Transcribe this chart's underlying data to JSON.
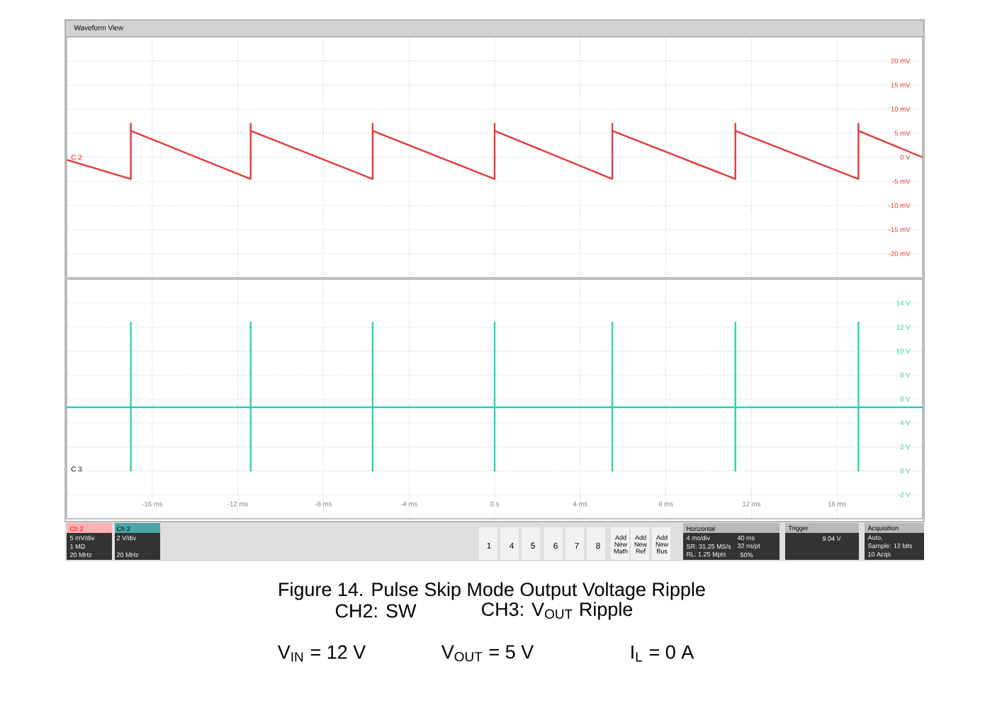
{
  "chart_data": [
    {
      "type": "line",
      "xlim": [
        -20,
        20
      ],
      "ylim": [
        -25,
        25
      ],
      "grid": true,
      "tick_labels": "y",
      "xticks": [
        -16,
        -12,
        -8,
        -4,
        0,
        4,
        8,
        12,
        16
      ],
      "yticks": [
        {
          "value": -20,
          "label": "-20 mV"
        },
        {
          "value": -15,
          "label": "-15 mV"
        },
        {
          "value": -10,
          "label": "-10 mV"
        },
        {
          "value": -5,
          "label": "-5 mV"
        },
        {
          "value": 0,
          "label": "0 V"
        },
        {
          "value": 5,
          "label": "5 mV"
        },
        {
          "value": 10,
          "label": "10 mV"
        },
        {
          "value": 15,
          "label": "15 mV"
        },
        {
          "value": 20,
          "label": "20 mV"
        }
      ],
      "annotations": [
        "Waveform View",
        "C 2"
      ],
      "series": [
        {
          "color": "#e5393b",
          "x": [
            -20,
            -17,
            -17,
            -17,
            -11.4,
            -11.4,
            -11.4,
            -5.7,
            -5.7,
            -5.7,
            0,
            0,
            0,
            5.5,
            5.5,
            5.5,
            11.25,
            11.25,
            11.25,
            17,
            17,
            17,
            20
          ],
          "values": [
            -0.5,
            -4.5,
            7,
            5.5,
            -4.5,
            7,
            5.5,
            -4.5,
            7,
            5.5,
            -4.5,
            7,
            5.5,
            -4.5,
            7,
            5.5,
            -4.5,
            7,
            5.5,
            -4.5,
            7,
            5.5,
            0
          ]
        }
      ]
    },
    {
      "type": "line",
      "xlim": [
        -20,
        20
      ],
      "ylim": [
        -4,
        16
      ],
      "grid": true,
      "xticks": [
        {
          "value": -16,
          "label": "-16 ms"
        },
        {
          "value": -12,
          "label": "-12 ms"
        },
        {
          "value": -8,
          "label": "-8 ms"
        },
        {
          "value": -4,
          "label": "-4 ms"
        },
        {
          "value": 0,
          "label": "0 s"
        },
        {
          "value": 4,
          "label": "4 ms"
        },
        {
          "value": 8,
          "label": "8 ms"
        },
        {
          "value": 12,
          "label": "12 ms"
        },
        {
          "value": 16,
          "label": "16 ms"
        }
      ],
      "yticks": [
        {
          "value": -2,
          "label": "-2 V"
        },
        {
          "value": 0,
          "label": "0 V"
        },
        {
          "value": 2,
          "label": "2 V"
        },
        {
          "value": 4,
          "label": "4 V"
        },
        {
          "value": 6,
          "label": "6 V"
        },
        {
          "value": 8,
          "label": "8 V"
        },
        {
          "value": 10,
          "label": "10 V"
        },
        {
          "value": 12,
          "label": "12 V"
        },
        {
          "value": 14,
          "label": "14 V"
        }
      ],
      "annotations": [
        "C 3",
        "Ch 2",
        "5 mV/div",
        "1 MΩ",
        "20 MHz",
        "Ch 3",
        "2 V/div",
        "20 MHz",
        "1",
        "4",
        "5",
        "6",
        "7",
        "8",
        "Add New Math",
        "Add New Ref",
        "Add New Bus",
        "Horizontal",
        "4 ms/div",
        "40 ms",
        "SR: 31.25 MS/s",
        "32 ns/pt",
        "RL: 1.25 Mpts",
        "50%",
        "Trigger",
        "9.04 V",
        "Acquisition",
        "Auto,",
        "Sample: 12 bits",
        "10 Acqs",
        "Figure 14. Pulse Skip Mode Output Voltage Ripple",
        "CH2: SW",
        "CH3: V$_{OUT}$ Ripple",
        "V$_{IN}$ = 12 V",
        "V$_{OUT}$ = 5 V",
        "I$_{L}$ = 0 A"
      ],
      "series": [
        {
          "color": "#2ed3b0",
          "x": [
            -20,
            -17,
            -17,
            -17,
            -17,
            -11.4,
            -11.4,
            -11.4,
            -11.4,
            -5.7,
            -5.7,
            -5.7,
            -5.7,
            0,
            0,
            0,
            0,
            5.5,
            5.5,
            5.5,
            5.5,
            11.25,
            11.25,
            11.25,
            11.25,
            17,
            17,
            17,
            17,
            20
          ],
          "values": [
            5.3,
            5.3,
            12.4,
            0,
            5.3,
            5.3,
            12.4,
            0,
            5.3,
            5.3,
            12.4,
            0,
            5.3,
            5.3,
            12.4,
            0,
            5.3,
            5.3,
            12.4,
            0,
            5.3,
            5.3,
            12.4,
            0,
            5.3,
            5.3,
            12.4,
            0,
            5.3,
            5.3
          ]
        }
      ]
    }
  ]
}
